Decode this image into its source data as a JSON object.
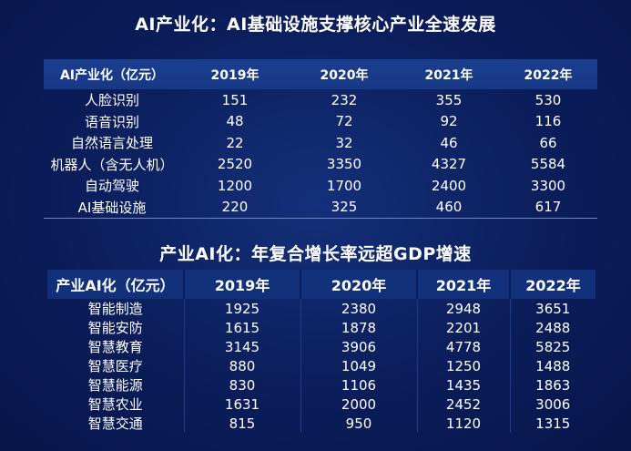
{
  "section1": {
    "title": "AI产业化：AI基础设施支撑核心产业全速发展",
    "columns": [
      "AI产业化（亿元）",
      "2019年",
      "2020年",
      "2021年",
      "2022年"
    ],
    "rows": [
      [
        "人脸识别",
        "151",
        "232",
        "355",
        "530"
      ],
      [
        "语音识别",
        "48",
        "72",
        "92",
        "116"
      ],
      [
        "自然语言处理",
        "22",
        "32",
        "46",
        "66"
      ],
      [
        "机器人（含无人机）",
        "2520",
        "3350",
        "4327",
        "5584"
      ],
      [
        "自动驾驶",
        "1200",
        "1700",
        "2400",
        "3300"
      ],
      [
        "AI基础设施",
        "220",
        "325",
        "460",
        "617"
      ]
    ]
  },
  "section2": {
    "title": "产业AI化：年复合增长率远超GDP增速",
    "columns": [
      "产业AI化（亿元）",
      "2019年",
      "2020年",
      "2021年",
      "2022年"
    ],
    "rows": [
      [
        "智能制造",
        "1925",
        "2380",
        "2948",
        "3651"
      ],
      [
        "智能安防",
        "1615",
        "1878",
        "2201",
        "2488"
      ],
      [
        "智慧教育",
        "3145",
        "3906",
        "4778",
        "5825"
      ],
      [
        "智慧医疗",
        "880",
        "1049",
        "1250",
        "1488"
      ],
      [
        "智慧能源",
        "830",
        "1106",
        "1435",
        "1863"
      ],
      [
        "智慧农业",
        "1631",
        "2000",
        "2452",
        "3006"
      ],
      [
        "智慧交通",
        "815",
        "950",
        "1120",
        "1315"
      ]
    ]
  }
}
